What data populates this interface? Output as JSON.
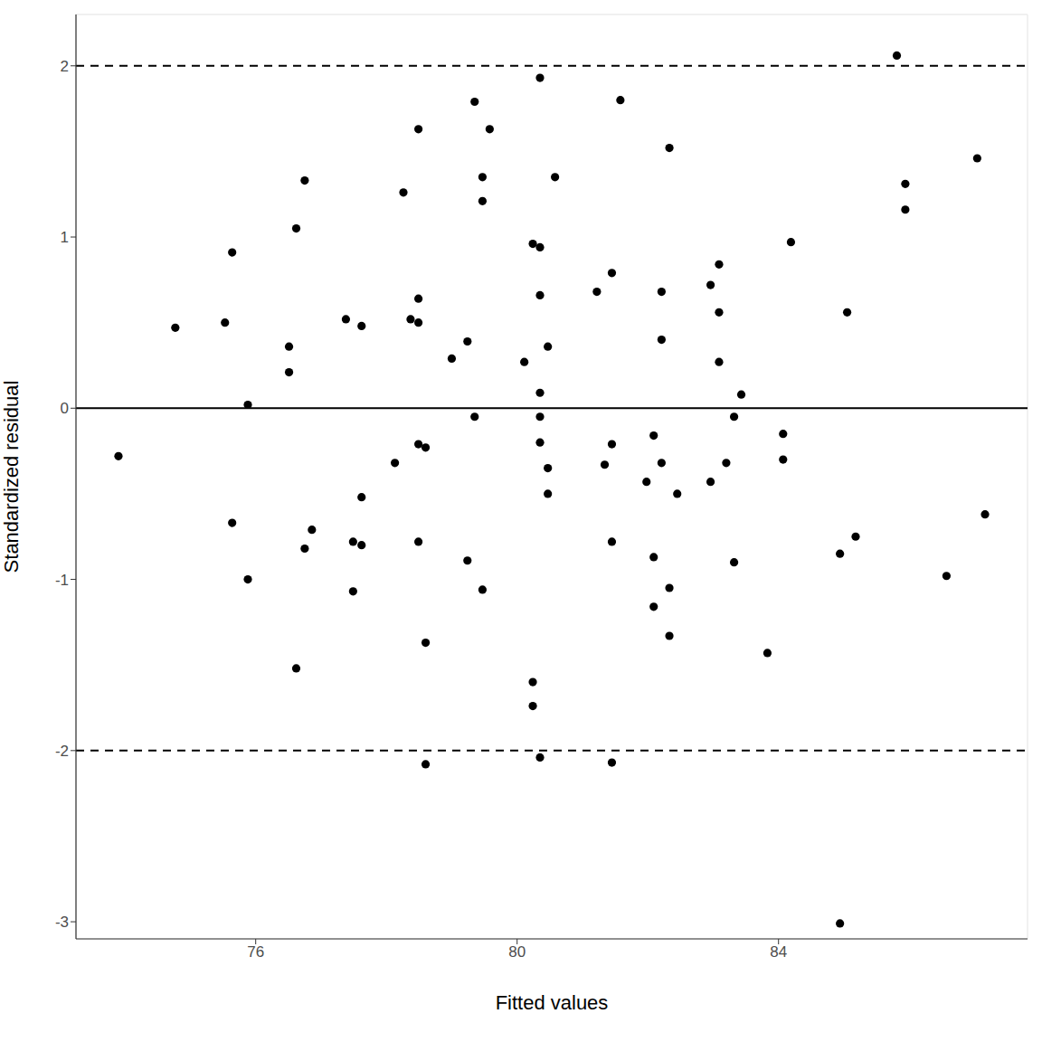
{
  "chart_data": {
    "type": "scatter",
    "x_label": "Fitted values",
    "y_label": "Standardized residual",
    "color": "#000000",
    "marker": "circle",
    "grid": true,
    "xlim": [
      73.25,
      87.81
    ],
    "ylim": [
      -3.1,
      2.3
    ],
    "xticks": [
      76,
      80,
      84
    ],
    "yticks": [
      -3,
      -2,
      -1,
      0,
      1,
      2
    ],
    "reference_lines": [
      {
        "y": 0,
        "line_style": "solid"
      },
      {
        "y": 2,
        "line_style": "dashed"
      },
      {
        "y": -2,
        "line_style": "dashed"
      }
    ],
    "x": [
      73.9,
      74.77,
      75.53,
      75.64,
      75.64,
      75.88,
      75.88,
      76.51,
      76.51,
      76.62,
      76.62,
      76.75,
      76.75,
      76.86,
      77.38,
      77.49,
      77.49,
      77.62,
      77.62,
      77.62,
      78.13,
      78.26,
      78.37,
      78.49,
      78.49,
      78.49,
      78.49,
      78.49,
      78.6,
      78.6,
      78.6,
      79.0,
      79.24,
      79.24,
      79.35,
      79.35,
      79.47,
      79.47,
      79.47,
      79.58,
      80.11,
      80.24,
      80.24,
      80.24,
      80.35,
      80.35,
      80.35,
      80.35,
      80.35,
      80.35,
      80.35,
      80.47,
      80.47,
      80.47,
      80.58,
      81.22,
      81.34,
      81.45,
      81.45,
      81.45,
      81.45,
      81.58,
      81.98,
      82.09,
      82.09,
      82.09,
      82.21,
      82.21,
      82.21,
      82.33,
      82.33,
      82.33,
      82.45,
      82.96,
      82.96,
      83.09,
      83.09,
      83.09,
      83.2,
      83.32,
      83.32,
      83.43,
      83.83,
      84.07,
      84.07,
      84.19,
      84.94,
      84.94,
      85.05,
      85.18,
      85.81,
      85.94,
      85.94,
      86.57,
      87.04,
      87.16
    ],
    "values": [
      -0.28,
      0.47,
      0.5,
      0.91,
      -0.67,
      0.02,
      -1.0,
      0.36,
      0.21,
      1.05,
      -1.52,
      1.33,
      -0.82,
      -0.71,
      0.52,
      -0.78,
      -1.07,
      0.48,
      -0.52,
      -0.8,
      -0.32,
      1.26,
      0.52,
      1.63,
      0.64,
      0.5,
      -0.21,
      -0.78,
      -0.23,
      -1.37,
      -2.08,
      0.29,
      0.39,
      -0.89,
      1.79,
      -0.05,
      1.35,
      1.21,
      -1.06,
      1.63,
      0.27,
      0.96,
      -1.6,
      -1.74,
      1.93,
      0.94,
      0.66,
      0.09,
      -0.05,
      -0.2,
      -2.04,
      0.36,
      -0.35,
      -0.5,
      1.35,
      0.68,
      -0.33,
      0.79,
      -0.21,
      -0.78,
      -2.07,
      1.8,
      -0.43,
      -0.16,
      -0.87,
      -1.16,
      0.68,
      0.4,
      -0.32,
      1.52,
      -1.05,
      -1.33,
      -0.5,
      0.72,
      -0.43,
      0.84,
      0.56,
      0.27,
      -0.32,
      -0.05,
      -0.9,
      0.08,
      -1.43,
      -0.15,
      -0.3,
      0.97,
      -0.85,
      -3.01,
      0.56,
      -0.75,
      2.06,
      1.31,
      1.16,
      -0.98,
      1.46,
      -0.62
    ]
  }
}
